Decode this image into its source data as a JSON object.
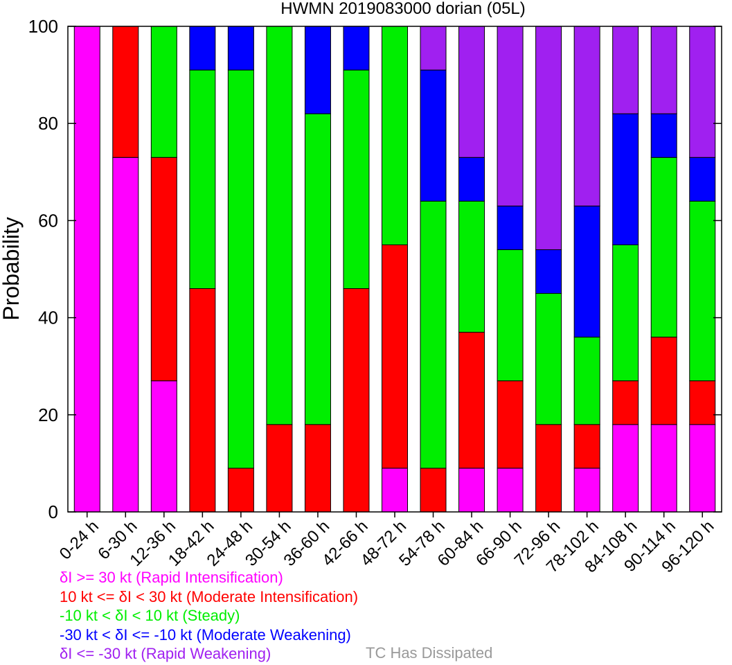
{
  "chart_data": {
    "type": "bar",
    "stacked": true,
    "title": "HWMN 2019083000 dorian (05L)",
    "ylabel": "Probability",
    "xlabel": "",
    "ylim": [
      0,
      100
    ],
    "yticks": [
      0,
      20,
      40,
      60,
      80,
      100
    ],
    "grid": false,
    "categories": [
      "0-24 h",
      "6-30 h",
      "12-36 h",
      "18-42 h",
      "24-48 h",
      "30-54 h",
      "36-60 h",
      "42-66 h",
      "48-72 h",
      "54-78 h",
      "60-84 h",
      "66-90 h",
      "72-96 h",
      "78-102 h",
      "84-108 h",
      "90-114 h",
      "96-120 h"
    ],
    "series": [
      {
        "name": "δI >= 30 kt (Rapid Intensification)",
        "color": "#ff00ff",
        "values": [
          100,
          73,
          27,
          0,
          0,
          0,
          0,
          0,
          9,
          0,
          9,
          9,
          0,
          9,
          18,
          18,
          18
        ]
      },
      {
        "name": "10 kt <= δI < 30 kt (Moderate Intensification)",
        "color": "#ff0000",
        "values": [
          0,
          27,
          46,
          46,
          9,
          18,
          18,
          46,
          46,
          9,
          28,
          18,
          18,
          9,
          9,
          18,
          9
        ]
      },
      {
        "name": "-10 kt < δI < 10 kt (Steady)",
        "color": "#00ee00",
        "values": [
          0,
          0,
          27,
          45,
          82,
          82,
          64,
          45,
          45,
          55,
          27,
          27,
          27,
          18,
          28,
          37,
          37
        ]
      },
      {
        "name": "-30 kt < δI <= -10 kt (Moderate Weakening)",
        "color": "#0000ff",
        "values": [
          0,
          0,
          0,
          9,
          9,
          0,
          18,
          9,
          0,
          27,
          9,
          9,
          9,
          27,
          27,
          9,
          9
        ]
      },
      {
        "name": "δI <= -30 kt (Rapid Weakening)",
        "color": "#a020f0",
        "values": [
          0,
          0,
          0,
          0,
          0,
          0,
          0,
          0,
          0,
          9,
          27,
          37,
          46,
          37,
          18,
          18,
          27
        ]
      }
    ],
    "legend_placement": "bottom-left"
  },
  "legend": {
    "items": [
      {
        "text": "δI >= 30 kt (Rapid Intensification)",
        "color": "#ff00ff"
      },
      {
        "text": "10 kt <= δI < 30 kt (Moderate Intensification)",
        "color": "#ff0000"
      },
      {
        "text": "-10 kt < δI < 10 kt (Steady)",
        "color": "#00ee00"
      },
      {
        "text": "-30 kt < δI <= -10 kt (Moderate Weakening)",
        "color": "#0000ff"
      },
      {
        "text": "δI <= -30 kt (Rapid Weakening)",
        "color": "#a020f0"
      }
    ],
    "dissipated_label": "TC Has Dissipated",
    "dissipated_color": "#999999"
  }
}
